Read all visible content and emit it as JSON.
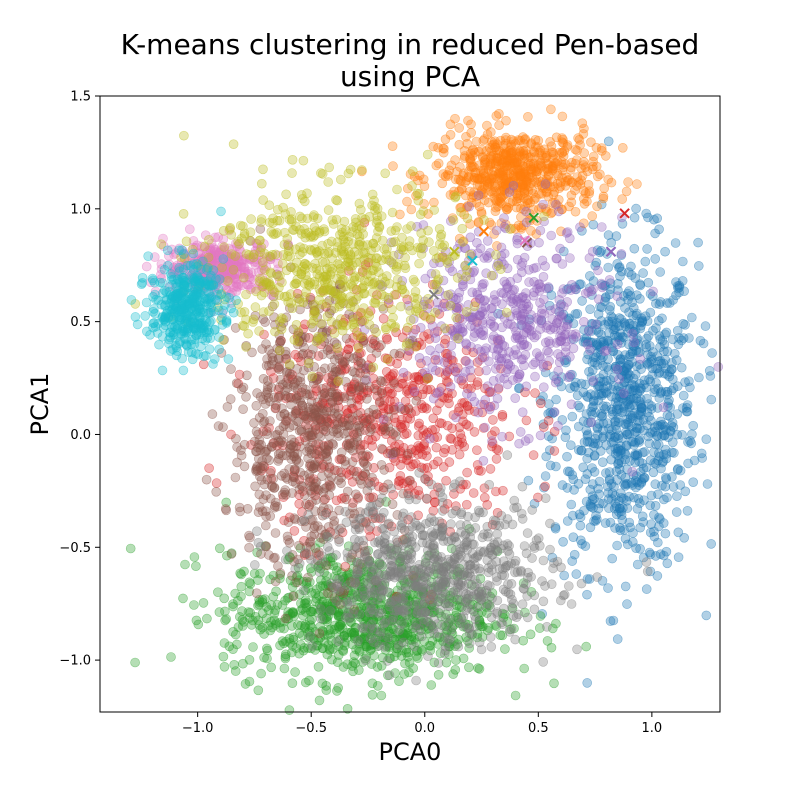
{
  "chart_data": {
    "type": "scatter",
    "title_line1": "K-means clustering in reduced Pen-based",
    "title_line2": "using PCA",
    "xlabel": "PCA0",
    "ylabel": "PCA1",
    "xlim": [
      -1.43,
      1.3
    ],
    "ylim": [
      -1.23,
      1.5
    ],
    "x_ticks": [
      -1.0,
      -0.5,
      0.0,
      0.5,
      1.0
    ],
    "x_tick_labels": [
      "−1.0",
      "−0.5",
      "0.0",
      "0.5",
      "1.0"
    ],
    "y_ticks": [
      -1.0,
      -0.5,
      0.0,
      0.5,
      1.0,
      1.5
    ],
    "y_tick_labels": [
      "−1.0",
      "−0.5",
      "0.0",
      "0.5",
      "1.0",
      "1.5"
    ],
    "grid": false,
    "legend": "none",
    "marker_alpha": 0.35,
    "clusters": [
      {
        "color": "#1f77b4",
        "center": [
          0.88,
          0.12
        ],
        "spread": [
          0.16,
          0.36
        ],
        "count": 900,
        "centroid_marker": [
          0.82,
          0.81
        ]
      },
      {
        "color": "#ff7f0e",
        "center": [
          0.4,
          1.15
        ],
        "spread": [
          0.18,
          0.1
        ],
        "count": 600,
        "centroid_marker": [
          0.26,
          0.9
        ]
      },
      {
        "color": "#2ca02c",
        "center": [
          -0.28,
          -0.8
        ],
        "spread": [
          0.3,
          0.14
        ],
        "count": 900,
        "centroid_marker": [
          0.48,
          0.96
        ]
      },
      {
        "color": "#d62728",
        "center": [
          -0.15,
          0.08
        ],
        "spread": [
          0.28,
          0.26
        ],
        "count": 600,
        "centroid_marker": [
          0.88,
          0.98
        ]
      },
      {
        "color": "#9467bd",
        "center": [
          0.35,
          0.5
        ],
        "spread": [
          0.22,
          0.22
        ],
        "count": 500,
        "centroid_marker": [
          0.82,
          0.81
        ]
      },
      {
        "color": "#8c564b",
        "center": [
          -0.5,
          0.0
        ],
        "spread": [
          0.18,
          0.3
        ],
        "count": 700,
        "centroid_marker": [
          0.45,
          0.85
        ]
      },
      {
        "color": "#e377c2",
        "center": [
          -0.9,
          0.74
        ],
        "spread": [
          0.12,
          0.06
        ],
        "count": 350,
        "centroid_marker": [
          0.44,
          0.86
        ]
      },
      {
        "color": "#7f7f7f",
        "center": [
          0.05,
          -0.62
        ],
        "spread": [
          0.26,
          0.16
        ],
        "count": 700,
        "centroid_marker": [
          0.04,
          0.62
        ]
      },
      {
        "color": "#bcbd22",
        "center": [
          -0.4,
          0.75
        ],
        "spread": [
          0.28,
          0.18
        ],
        "count": 600,
        "centroid_marker": [
          0.13,
          0.81
        ]
      },
      {
        "color": "#17becf",
        "center": [
          -1.05,
          0.56
        ],
        "spread": [
          0.08,
          0.1
        ],
        "count": 400,
        "centroid_marker": [
          0.21,
          0.77
        ]
      }
    ],
    "centroids": [
      {
        "color": "#1f77b4",
        "x": 0.82,
        "y": 0.81
      },
      {
        "color": "#ff7f0e",
        "x": 0.26,
        "y": 0.9
      },
      {
        "color": "#2ca02c",
        "x": 0.48,
        "y": 0.96
      },
      {
        "color": "#d62728",
        "x": 0.88,
        "y": 0.98
      },
      {
        "color": "#9467bd",
        "x": 0.82,
        "y": 0.81
      },
      {
        "color": "#8c564b",
        "x": 0.45,
        "y": 0.85
      },
      {
        "color": "#e377c2",
        "x": 0.44,
        "y": 0.86
      },
      {
        "color": "#7f7f7f",
        "x": 0.04,
        "y": 0.62
      },
      {
        "color": "#bcbd22",
        "x": 0.13,
        "y": 0.81
      },
      {
        "color": "#17becf",
        "x": 0.21,
        "y": 0.77
      }
    ]
  }
}
